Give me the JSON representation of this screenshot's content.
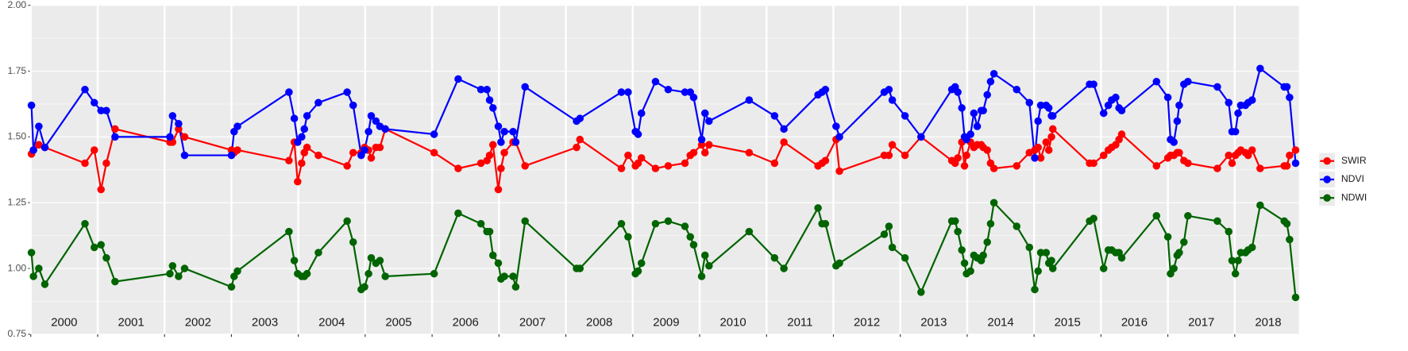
{
  "chart_data": {
    "type": "line",
    "x": [
      2000.01,
      2000.04,
      2000.12,
      2000.21,
      2000.81,
      2000.95,
      2001.05,
      2001.13,
      2001.26,
      2002.08,
      2002.12,
      2002.21,
      2002.3,
      2003.0,
      2003.04,
      2003.09,
      2003.86,
      2003.94,
      2003.99,
      2004.05,
      2004.09,
      2004.13,
      2004.3,
      2004.73,
      2004.82,
      2004.94,
      2004.99,
      2005.05,
      2005.09,
      2005.16,
      2005.22,
      2005.3,
      2006.03,
      2006.39,
      2006.73,
      2006.82,
      2006.86,
      2006.91,
      2006.99,
      2007.03,
      2007.08,
      2007.21,
      2007.25,
      2007.39,
      2008.16,
      2008.21,
      2008.83,
      2008.93,
      2009.04,
      2009.08,
      2009.13,
      2009.34,
      2009.53,
      2009.78,
      2009.86,
      2009.91,
      2010.03,
      2010.08,
      2010.14,
      2010.74,
      2011.12,
      2011.26,
      2011.77,
      2011.83,
      2011.88,
      2012.04,
      2012.09,
      2012.76,
      2012.83,
      2012.88,
      2013.07,
      2013.31,
      2013.77,
      2013.82,
      2013.86,
      2013.92,
      2013.96,
      2013.99,
      2014.05,
      2014.1,
      2014.15,
      2014.21,
      2014.24,
      2014.3,
      2014.35,
      2014.4,
      2014.74,
      2014.93,
      2015.01,
      2015.06,
      2015.1,
      2015.18,
      2015.22,
      2015.26,
      2015.28,
      2015.83,
      2015.89,
      2016.04,
      2016.11,
      2016.16,
      2016.22,
      2016.27,
      2016.31,
      2016.83,
      2017.0,
      2017.04,
      2017.09,
      2017.14,
      2017.17,
      2017.24,
      2017.3,
      2017.74,
      2017.91,
      2017.96,
      2018.01,
      2018.05,
      2018.09,
      2018.16,
      2018.2,
      2018.26,
      2018.38,
      2018.74,
      2018.78,
      2018.82,
      2018.91
    ],
    "series": [
      {
        "name": "SWIR",
        "color": "#ff0000",
        "values": [
          1.435,
          1.45,
          1.47,
          1.46,
          1.4,
          1.45,
          1.3,
          1.4,
          1.53,
          1.48,
          1.48,
          1.53,
          1.5,
          1.45,
          1.44,
          1.45,
          1.41,
          1.48,
          1.33,
          1.4,
          1.44,
          1.46,
          1.43,
          1.39,
          1.44,
          1.44,
          1.46,
          1.45,
          1.42,
          1.46,
          1.46,
          1.53,
          1.44,
          1.38,
          1.4,
          1.41,
          1.43,
          1.47,
          1.3,
          1.38,
          1.44,
          1.48,
          1.48,
          1.39,
          1.46,
          1.49,
          1.38,
          1.43,
          1.39,
          1.4,
          1.42,
          1.38,
          1.39,
          1.4,
          1.43,
          1.44,
          1.47,
          1.44,
          1.47,
          1.44,
          1.4,
          1.48,
          1.39,
          1.4,
          1.41,
          1.49,
          1.37,
          1.43,
          1.43,
          1.47,
          1.43,
          1.5,
          1.41,
          1.4,
          1.42,
          1.48,
          1.39,
          1.43,
          1.48,
          1.46,
          1.47,
          1.47,
          1.46,
          1.45,
          1.4,
          1.38,
          1.39,
          1.44,
          1.45,
          1.46,
          1.42,
          1.48,
          1.45,
          1.5,
          1.53,
          1.4,
          1.4,
          1.43,
          1.45,
          1.46,
          1.47,
          1.49,
          1.51,
          1.39,
          1.42,
          1.43,
          1.43,
          1.44,
          1.44,
          1.41,
          1.4,
          1.38,
          1.43,
          1.4,
          1.43,
          1.44,
          1.45,
          1.44,
          1.43,
          1.45,
          1.38,
          1.39,
          1.39,
          1.43,
          1.45
        ]
      },
      {
        "name": "NDVI",
        "color": "#0000ff",
        "values": [
          1.62,
          1.45,
          1.54,
          1.46,
          1.68,
          1.63,
          1.6,
          1.6,
          1.5,
          1.5,
          1.58,
          1.55,
          1.43,
          1.43,
          1.52,
          1.54,
          1.67,
          1.57,
          1.48,
          1.5,
          1.53,
          1.58,
          1.63,
          1.67,
          1.62,
          1.43,
          1.45,
          1.52,
          1.58,
          1.56,
          1.54,
          1.53,
          1.51,
          1.72,
          1.68,
          1.68,
          1.64,
          1.61,
          1.54,
          1.48,
          1.52,
          1.52,
          1.48,
          1.69,
          1.56,
          1.57,
          1.67,
          1.67,
          1.52,
          1.51,
          1.59,
          1.71,
          1.68,
          1.67,
          1.67,
          1.65,
          1.49,
          1.59,
          1.56,
          1.64,
          1.58,
          1.53,
          1.66,
          1.67,
          1.68,
          1.54,
          1.5,
          1.67,
          1.68,
          1.64,
          1.58,
          1.5,
          1.68,
          1.69,
          1.67,
          1.61,
          1.5,
          1.49,
          1.51,
          1.59,
          1.54,
          1.6,
          1.6,
          1.66,
          1.71,
          1.74,
          1.68,
          1.63,
          1.42,
          1.56,
          1.62,
          1.62,
          1.61,
          1.58,
          1.58,
          1.7,
          1.7,
          1.59,
          1.62,
          1.64,
          1.65,
          1.61,
          1.6,
          1.71,
          1.65,
          1.49,
          1.48,
          1.56,
          1.62,
          1.7,
          1.71,
          1.69,
          1.63,
          1.52,
          1.52,
          1.59,
          1.62,
          1.62,
          1.63,
          1.64,
          1.76,
          1.69,
          1.69,
          1.65,
          1.4
        ]
      },
      {
        "name": "NDWI",
        "color": "#006400",
        "values": [
          1.06,
          0.97,
          1.0,
          0.94,
          1.17,
          1.08,
          1.09,
          1.04,
          0.95,
          0.98,
          1.01,
          0.97,
          1.0,
          0.93,
          0.97,
          0.99,
          1.14,
          1.03,
          0.98,
          0.97,
          0.97,
          0.98,
          1.06,
          1.18,
          1.1,
          0.92,
          0.93,
          0.98,
          1.04,
          1.02,
          1.03,
          0.97,
          0.98,
          1.21,
          1.17,
          1.14,
          1.14,
          1.05,
          1.02,
          0.96,
          0.97,
          0.97,
          0.93,
          1.18,
          1.0,
          1.0,
          1.17,
          1.12,
          0.98,
          0.99,
          1.02,
          1.17,
          1.18,
          1.16,
          1.12,
          1.09,
          0.97,
          1.05,
          1.01,
          1.14,
          1.04,
          1.0,
          1.23,
          1.17,
          1.17,
          1.01,
          1.02,
          1.13,
          1.16,
          1.08,
          1.04,
          0.91,
          1.18,
          1.18,
          1.14,
          1.07,
          1.02,
          0.98,
          0.99,
          1.05,
          1.04,
          1.03,
          1.05,
          1.1,
          1.17,
          1.25,
          1.16,
          1.08,
          0.92,
          0.99,
          1.06,
          1.06,
          1.02,
          1.03,
          1.0,
          1.18,
          1.19,
          1.0,
          1.07,
          1.07,
          1.06,
          1.06,
          1.04,
          1.2,
          1.12,
          0.98,
          1.0,
          1.05,
          1.06,
          1.1,
          1.2,
          1.18,
          1.14,
          1.03,
          0.98,
          1.03,
          1.06,
          1.06,
          1.07,
          1.08,
          1.24,
          1.18,
          1.17,
          1.11,
          0.89
        ]
      }
    ],
    "xlim": [
      2000,
      2018.96
    ],
    "year_labels": [
      2000,
      2001,
      2002,
      2003,
      2004,
      2005,
      2006,
      2007,
      2008,
      2009,
      2010,
      2011,
      2012,
      2013,
      2014,
      2015,
      2016,
      2017,
      2018
    ],
    "ylim": [
      0.75,
      2.0
    ],
    "yticks": [
      {
        "value": 0.75,
        "label": "0.75"
      },
      {
        "value": 1.0,
        "label": "1.00"
      },
      {
        "value": 1.25,
        "label": "1.25"
      },
      {
        "value": 1.5,
        "label": "1.50"
      },
      {
        "value": 1.75,
        "label": "1.75"
      },
      {
        "value": 2.0,
        "label": "2.00"
      }
    ],
    "grid": true,
    "legend": "right"
  }
}
